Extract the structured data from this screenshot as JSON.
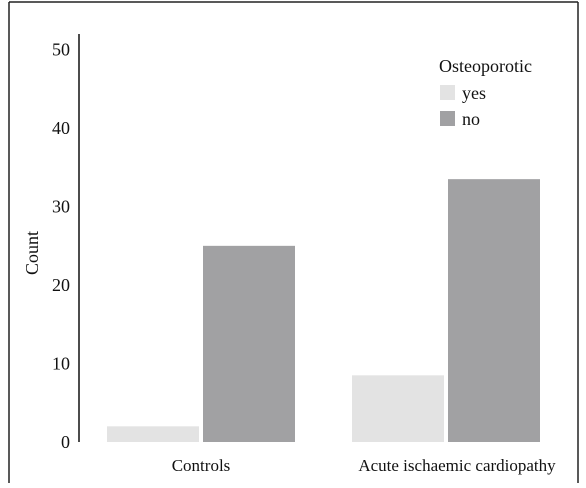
{
  "chart_data": {
    "type": "bar",
    "title": "",
    "xlabel": "",
    "ylabel": "Count",
    "ylim": [
      0,
      52
    ],
    "yticks": [
      0,
      10,
      20,
      30,
      40,
      50
    ],
    "grid": false,
    "legend_position": "top-right",
    "legend_title": "Osteoporotic",
    "categories": [
      "Controls",
      "Acute ischaemic cardiopathy"
    ],
    "series": [
      {
        "name": "yes",
        "values": [
          2,
          8.5
        ],
        "color": "#e3e3e3"
      },
      {
        "name": "no",
        "values": [
          25,
          33.5
        ],
        "color": "#a1a1a3"
      }
    ]
  }
}
